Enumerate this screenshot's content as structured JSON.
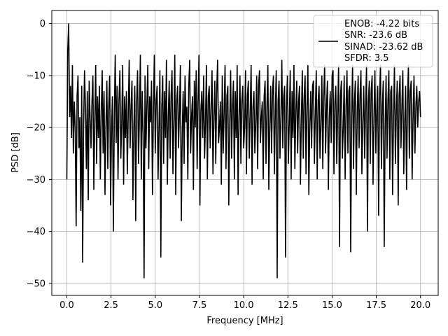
{
  "chart_data": {
    "type": "line",
    "title": "",
    "xlabel": "Frequency [MHz]",
    "ylabel": "PSD [dB]",
    "xlim": [
      -0.85,
      21.0
    ],
    "ylim": [
      -52.3,
      2.5
    ],
    "xticks": [
      0.0,
      2.5,
      5.0,
      7.5,
      10.0,
      12.5,
      15.0,
      17.5,
      20.0
    ],
    "xtick_labels": [
      "0.0",
      "2.5",
      "5.0",
      "7.5",
      "10.0",
      "12.5",
      "15.0",
      "17.5",
      "20.0"
    ],
    "yticks": [
      0,
      -10,
      -20,
      -30,
      -40,
      -50
    ],
    "ytick_labels": [
      "0",
      "−10",
      "−20",
      "−30",
      "−40",
      "−50"
    ],
    "grid": true,
    "legend_placement": "top-right",
    "series": [
      {
        "color": "#000000",
        "x_start": 0.0,
        "x_end": 20.0,
        "values": [
          -30,
          -5,
          0,
          -18,
          -12,
          -22,
          -8,
          -25,
          -15,
          -20,
          -39,
          -14,
          -10,
          -24,
          -18,
          -36,
          -12,
          -46,
          -20,
          -9,
          -16,
          -28,
          -13,
          -34,
          -11,
          -18,
          -24,
          -15,
          -10,
          -32,
          -19,
          -8,
          -27,
          -14,
          -22,
          -12,
          -30,
          -17,
          -9,
          -25,
          -13,
          -33,
          -20,
          -11,
          -28,
          -16,
          -10,
          -35,
          -21,
          -14,
          -40,
          -18,
          -6,
          -23,
          -12,
          -30,
          -15,
          -9,
          -26,
          -19,
          -8,
          -31,
          -14,
          -22,
          -13,
          -29,
          -17,
          -7,
          -24,
          -16,
          -11,
          -34,
          -20,
          -12,
          -38,
          -15,
          -9,
          -27,
          -18,
          -6,
          -30,
          -13,
          -21,
          -49,
          -10,
          -24,
          -16,
          -8,
          -28,
          -14,
          -19,
          -11,
          -33,
          -17,
          -6,
          -25,
          -15,
          -12,
          -30,
          -20,
          -9,
          -45,
          -16,
          -10,
          -27,
          -13,
          -22,
          -7,
          -31,
          -18,
          -11,
          -26,
          -14,
          -9,
          -29,
          -19,
          -6,
          -33,
          -15,
          -12,
          -24,
          -17,
          -8,
          -38,
          -21,
          -13,
          -27,
          -10,
          -19,
          -16,
          -30,
          -12,
          -7,
          -25,
          -18,
          -14,
          -32,
          -11,
          -20,
          -9,
          -28,
          -15,
          -6,
          -35,
          -17,
          -13,
          -22,
          -10,
          -26,
          -19,
          -8,
          -30,
          -14,
          -12,
          -24,
          -16,
          -9,
          -29,
          -18,
          -11,
          -27,
          -13,
          -7,
          -23,
          -20,
          -15,
          -31,
          -10,
          -25,
          -17,
          -8,
          -28,
          -14,
          -12,
          -35,
          -19,
          -9,
          -26,
          -16,
          -11,
          -30,
          -13,
          -22,
          -8,
          -33,
          -18,
          -10,
          -27,
          -15,
          -12,
          -24,
          -20,
          -9,
          -29,
          -14,
          -11,
          -26,
          -17,
          -8,
          -31,
          -16,
          -13,
          -25,
          -19,
          -10,
          -28,
          -12,
          -9,
          -23,
          -18,
          -15,
          -30,
          -14,
          -11,
          -27,
          -16,
          -8,
          -32,
          -20,
          -12,
          -25,
          -13,
          -10,
          -29,
          -17,
          -9,
          -49,
          -15,
          -11,
          -26,
          -18,
          -7,
          -24,
          -14,
          -12,
          -45,
          -16,
          -10,
          -27,
          -19,
          -9,
          -30,
          -13,
          -22,
          -8,
          -28,
          -17,
          -11,
          -25,
          -15,
          -12,
          -31,
          -18,
          -9,
          -26,
          -14,
          -10,
          -29,
          -16,
          -8,
          -33,
          -20,
          -13,
          -24,
          -12,
          -11,
          -27,
          -17,
          -9,
          -30,
          -15,
          -12,
          -26,
          -19,
          -10,
          -28,
          -14,
          -8,
          -25,
          -16,
          -11,
          -32,
          -18,
          -13,
          -23,
          -10,
          -9,
          -29,
          -15,
          -12,
          -27,
          -17,
          -8,
          -43,
          -14,
          -11,
          -26,
          -20,
          -10,
          -30,
          -16,
          -9,
          -25,
          -13,
          -12,
          -44,
          -18,
          -8,
          -28,
          -15,
          -11,
          -33,
          -17,
          -10,
          -24,
          -14,
          -9,
          -29,
          -19,
          -12,
          -26,
          -16,
          -8,
          -40,
          -15,
          -11,
          -27,
          -13,
          -10,
          -31,
          -18,
          -9,
          -25,
          -17,
          -12,
          -37,
          -14,
          -8,
          -28,
          -16,
          -11,
          -43,
          -20,
          -10,
          -26,
          -15,
          -9,
          -30,
          -13,
          -12,
          -33,
          -18,
          -8,
          -27,
          -17,
          -11,
          -35,
          -14,
          -10,
          -24,
          -16,
          -9,
          -29,
          -19,
          -12,
          -32,
          -15,
          -8,
          -26,
          -13,
          -11,
          -30,
          -18,
          -10,
          -25,
          -16,
          -12,
          -20,
          -15,
          -13,
          -18
        ]
      }
    ],
    "legend": [
      "ENOB: -4.22 bits",
      "SNR: -23.6 dB",
      "SINAD: -23.62 dB",
      "SFDR: 3.5"
    ]
  }
}
